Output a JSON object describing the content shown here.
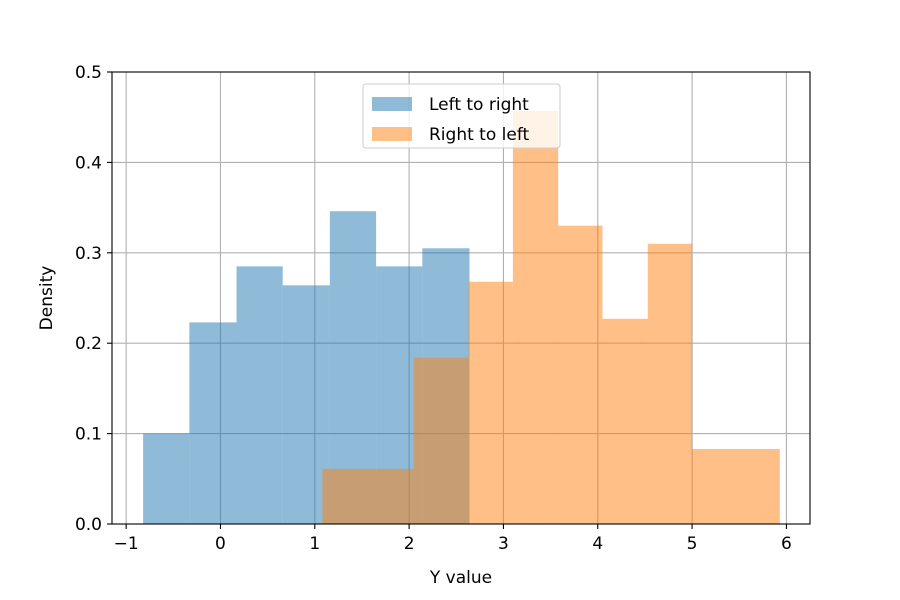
{
  "chart_data": {
    "type": "histogram",
    "xlabel": "Y value",
    "ylabel": "Density",
    "xlim": [
      -1.15,
      6.25
    ],
    "ylim": [
      0,
      0.5
    ],
    "xticks": [
      -1,
      0,
      1,
      2,
      3,
      4,
      5,
      6
    ],
    "yticks": [
      0.0,
      0.1,
      0.2,
      0.3,
      0.4,
      0.5
    ],
    "xtick_labels": [
      "−1",
      "0",
      "1",
      "2",
      "3",
      "4",
      "5",
      "6"
    ],
    "ytick_labels": [
      "0.0",
      "0.1",
      "0.2",
      "0.3",
      "0.4",
      "0.5"
    ],
    "grid": true,
    "legend_position": "upper center",
    "series": [
      {
        "name": "Left to right",
        "color": "#1f77b4",
        "opacity": 0.5,
        "bin_edges": [
          -0.82,
          -0.33,
          0.17,
          0.66,
          1.16,
          1.65,
          2.14,
          2.64
        ],
        "densities": [
          0.1,
          0.223,
          0.285,
          0.264,
          0.346,
          0.285,
          0.305
        ]
      },
      {
        "name": "Right to left",
        "color": "#ff7f0e",
        "opacity": 0.5,
        "bin_edges": [
          1.08,
          2.05,
          2.63,
          3.1,
          3.58,
          4.05,
          4.53,
          5.0,
          5.93
        ],
        "densities": [
          0.061,
          0.184,
          0.268,
          0.457,
          0.33,
          0.227,
          0.31,
          0.083
        ],
        "secondary_overlap_visible_densities": [
          0.061,
          0.184,
          0.06,
          0.142,
          0.019,
          0.0
        ]
      }
    ]
  }
}
